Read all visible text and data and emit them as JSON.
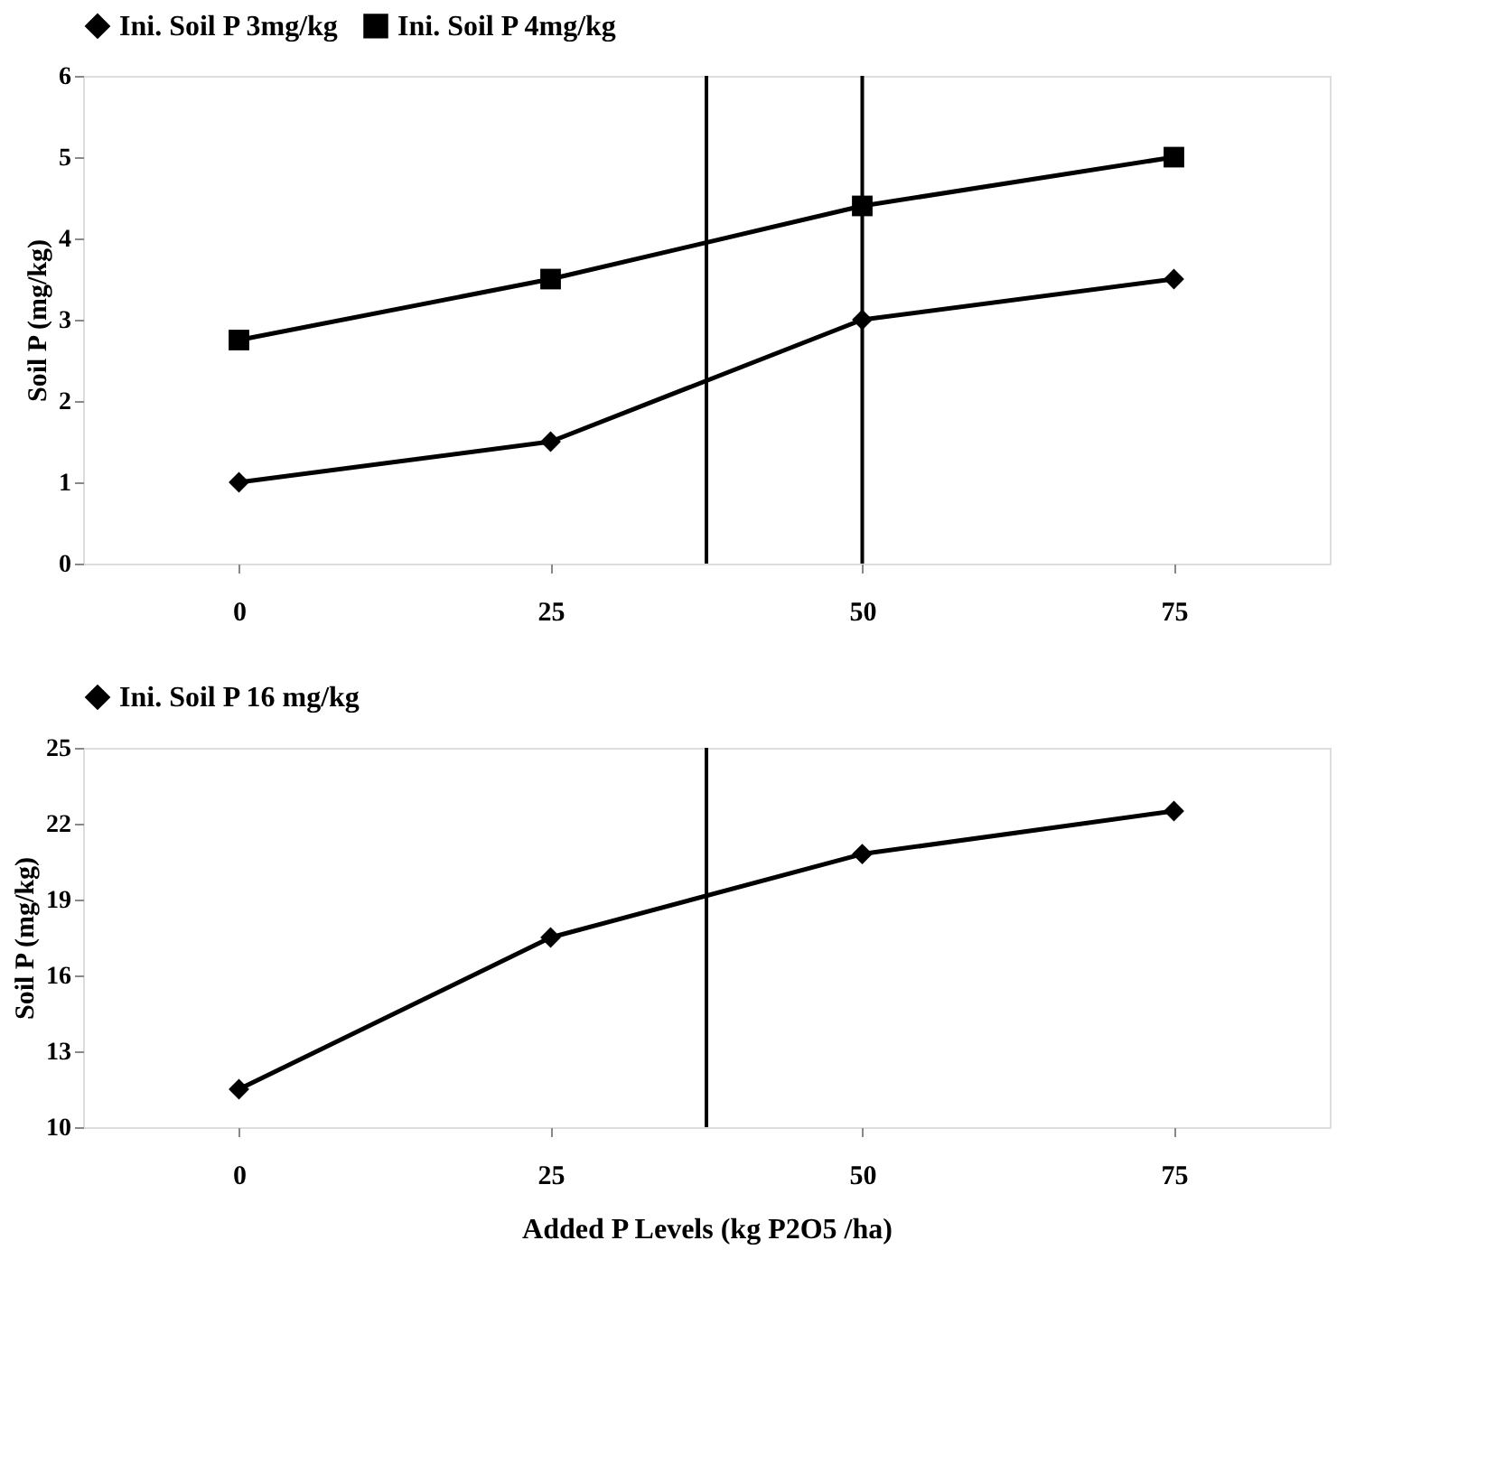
{
  "chart_data": [
    {
      "type": "line",
      "ylabel": "Soil P (mg/kg)",
      "x": [
        0,
        25,
        50,
        75
      ],
      "xlim": [
        -12.5,
        87.5
      ],
      "xticks": [
        0,
        25,
        50,
        75
      ],
      "ylim": [
        0,
        6
      ],
      "yticks": [
        0,
        1,
        2,
        3,
        4,
        5,
        6
      ],
      "grid": false,
      "legend": "top",
      "line_style": "solid",
      "series": [
        {
          "name": "Ini. Soil P 3mg/kg",
          "color": "#000000",
          "marker": "diamond",
          "values": [
            1,
            1.5,
            3,
            3.5
          ]
        },
        {
          "name": "Ini. Soil P 4mg/kg",
          "color": "#000000",
          "marker": "square",
          "values": [
            2.75,
            3.5,
            4.4,
            5
          ]
        }
      ],
      "ref_lines": [
        {
          "axis": "x",
          "value": 37.5,
          "color": "#000000"
        },
        {
          "axis": "x",
          "value": 50,
          "color": "#000000"
        }
      ]
    },
    {
      "type": "line",
      "xlabel": "Added P Levels (kg P2O5 /ha)",
      "ylabel": "Soil P (mg/kg)",
      "x": [
        0,
        25,
        50,
        75
      ],
      "xlim": [
        -12.5,
        87.5
      ],
      "xticks": [
        0,
        25,
        50,
        75
      ],
      "ylim": [
        10,
        25
      ],
      "yticks": [
        10,
        13,
        16,
        19,
        22,
        25
      ],
      "grid": false,
      "legend": "top",
      "line_style": "solid",
      "series": [
        {
          "name": "Ini. Soil P 16 mg/kg",
          "color": "#000000",
          "marker": "diamond",
          "values": [
            11.5,
            17.5,
            20.8,
            22.5
          ]
        }
      ],
      "ref_lines": [
        {
          "axis": "x",
          "value": 37.5,
          "color": "#000000"
        }
      ]
    }
  ]
}
